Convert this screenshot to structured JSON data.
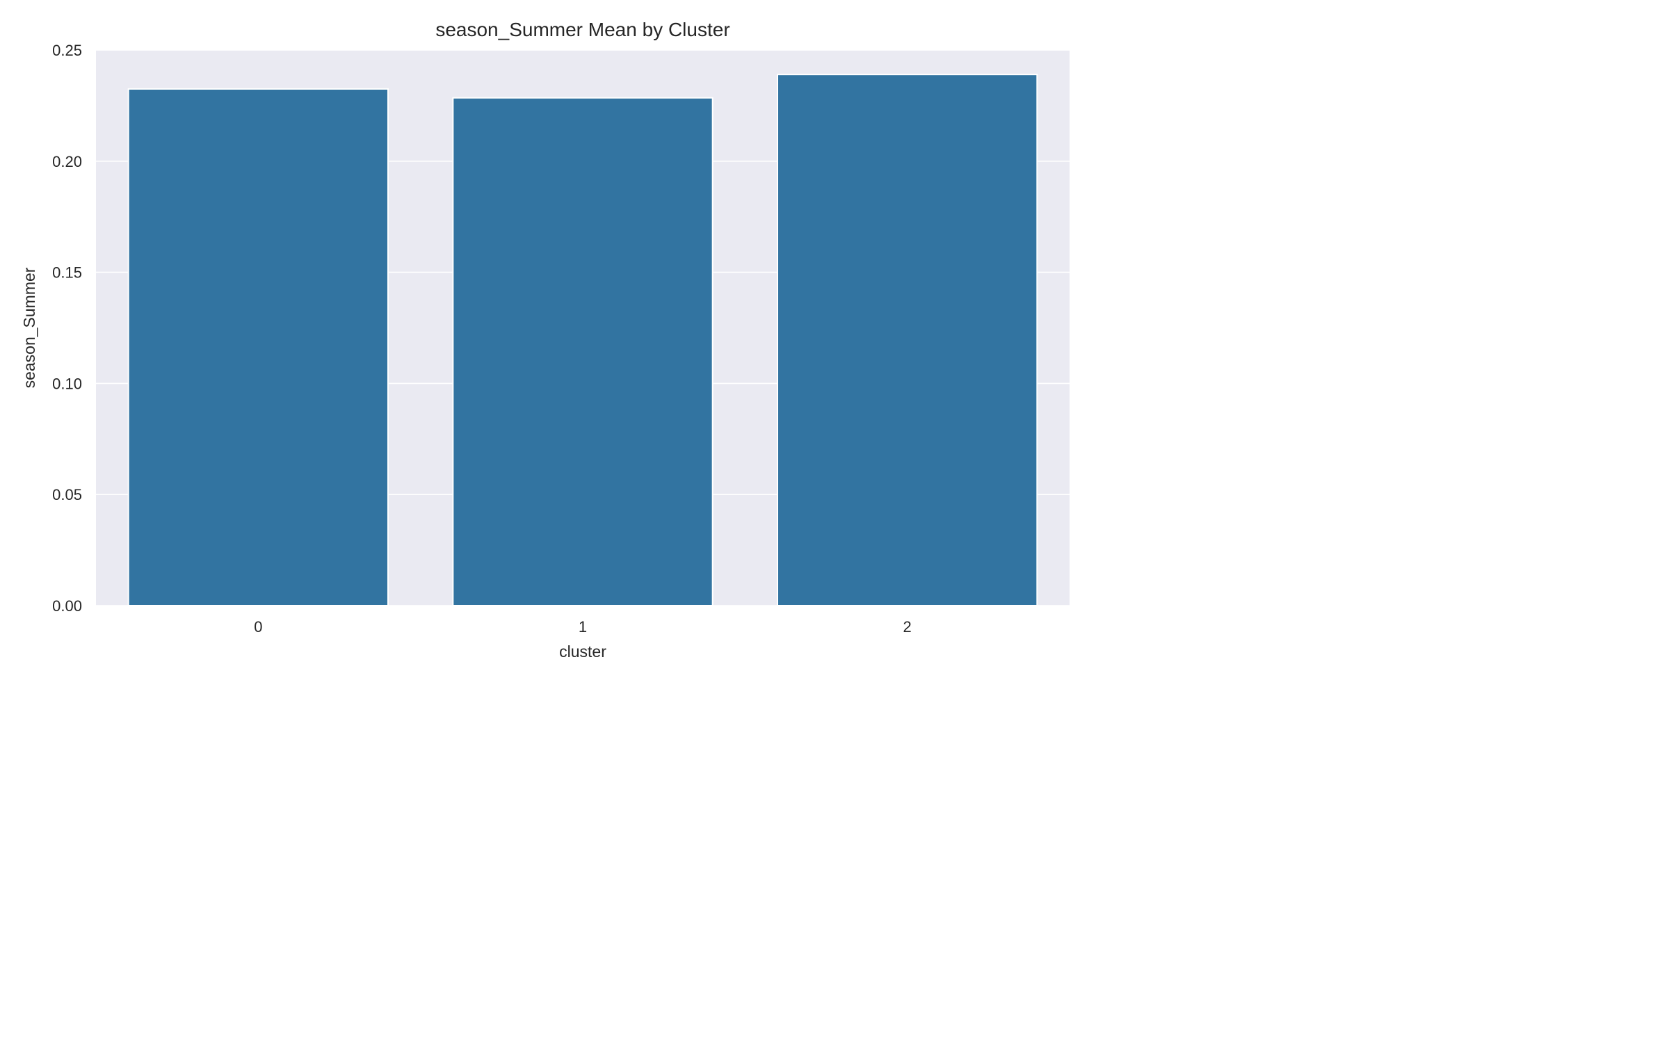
{
  "chart_data": {
    "type": "bar",
    "title": "season_Summer Mean by Cluster",
    "xlabel": "cluster",
    "ylabel": "season_Summer",
    "categories": [
      "0",
      "1",
      "2"
    ],
    "values": [
      0.2325,
      0.2285,
      0.239
    ],
    "ylim": [
      0,
      0.25
    ],
    "yticks": [
      "0.00",
      "0.05",
      "0.10",
      "0.15",
      "0.20",
      "0.25"
    ],
    "grid": true,
    "legend": "none",
    "colors": {
      "bar": "#3274a1",
      "plot_background": "#eaeaf2",
      "grid": "#ffffff",
      "bar_edge": "#ffffff"
    }
  }
}
